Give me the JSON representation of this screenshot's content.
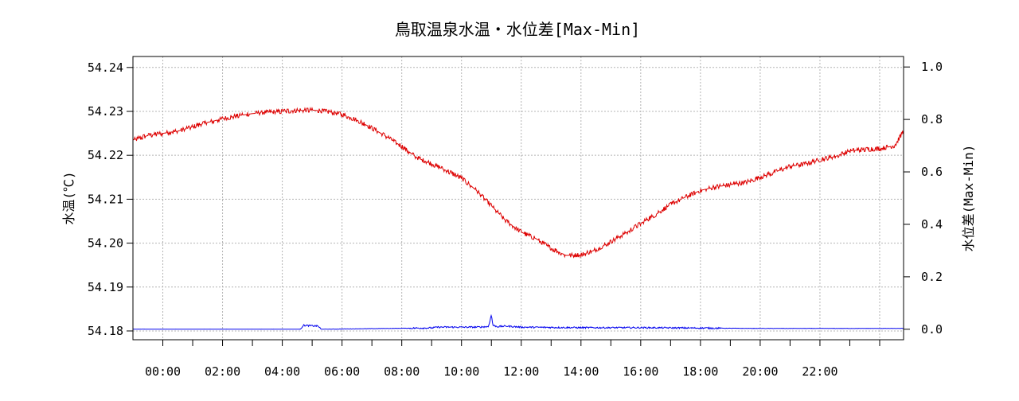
{
  "chart_data": {
    "type": "line",
    "title": "鳥取温泉水温・水位差[Max-Min]",
    "ylabel_left": "水温(℃)",
    "ylabel_right": "水位差(Max-Min)",
    "x_tick_labels": [
      "00:00",
      "02:00",
      "04:00",
      "06:00",
      "08:00",
      "10:00",
      "12:00",
      "14:00",
      "16:00",
      "18:00",
      "20:00",
      "22:00"
    ],
    "x_tick_hours": [
      0,
      2,
      4,
      6,
      8,
      10,
      12,
      14,
      16,
      18,
      20,
      22
    ],
    "xlim_hours": [
      -1.0,
      24.8
    ],
    "y_left_ticks": [
      "54.18",
      "54.19",
      "54.20",
      "54.21",
      "54.22",
      "54.23",
      "54.24"
    ],
    "y_left_tick_values": [
      54.18,
      54.19,
      54.2,
      54.21,
      54.22,
      54.23,
      54.24
    ],
    "ylim_left": [
      54.178,
      54.2425
    ],
    "y_right_ticks": [
      "0.0",
      "0.2",
      "0.4",
      "0.6",
      "0.8",
      "1.0"
    ],
    "y_right_tick_values": [
      0.0,
      0.2,
      0.4,
      0.6,
      0.8,
      1.0
    ],
    "ylim_right": [
      -0.04,
      1.04
    ],
    "grid": true,
    "series": [
      {
        "axis": "left",
        "color": "#dd0000",
        "x_hours": [
          -1.0,
          -0.5,
          0.0,
          0.5,
          1.0,
          1.5,
          2.0,
          2.5,
          3.0,
          3.5,
          4.0,
          4.5,
          5.0,
          5.5,
          6.0,
          6.5,
          7.0,
          7.5,
          8.0,
          8.5,
          9.0,
          9.5,
          10.0,
          10.5,
          11.0,
          11.5,
          12.0,
          12.5,
          13.0,
          13.5,
          14.0,
          14.5,
          15.0,
          15.5,
          16.0,
          16.5,
          17.0,
          17.5,
          18.0,
          18.5,
          19.0,
          19.5,
          20.0,
          20.5,
          21.0,
          21.5,
          22.0,
          22.5,
          23.0,
          23.5,
          24.0,
          24.5,
          24.8
        ],
        "values": [
          54.2235,
          54.2245,
          54.225,
          54.2255,
          54.2265,
          54.2275,
          54.2283,
          54.229,
          54.2295,
          54.2298,
          54.23,
          54.2302,
          54.2303,
          54.23,
          54.2293,
          54.228,
          54.2262,
          54.2242,
          54.222,
          54.2195,
          54.218,
          54.2165,
          54.2148,
          54.212,
          54.2085,
          54.205,
          54.2025,
          54.201,
          54.1988,
          54.1972,
          54.1973,
          54.1985,
          54.2003,
          54.2023,
          54.2045,
          54.2065,
          54.2088,
          54.2105,
          54.212,
          54.2128,
          54.2133,
          54.2138,
          54.215,
          54.2162,
          54.2175,
          54.218,
          54.219,
          54.2197,
          54.221,
          54.2213,
          54.2215,
          54.2222,
          54.2255
        ]
      },
      {
        "axis": "right",
        "color": "#0000ee",
        "x_hours": [
          -1.0,
          4.6,
          4.7,
          5.0,
          5.2,
          5.3,
          9.0,
          9.2,
          10.5,
          10.9,
          11.0,
          11.05,
          11.2,
          11.5,
          12.0,
          14.0,
          16.0,
          20.0,
          24.8
        ],
        "values": [
          0.0,
          0.0,
          0.015,
          0.013,
          0.012,
          0.0,
          0.005,
          0.008,
          0.008,
          0.01,
          0.055,
          0.015,
          0.01,
          0.012,
          0.008,
          0.006,
          0.006,
          0.003,
          0.003
        ]
      }
    ]
  }
}
